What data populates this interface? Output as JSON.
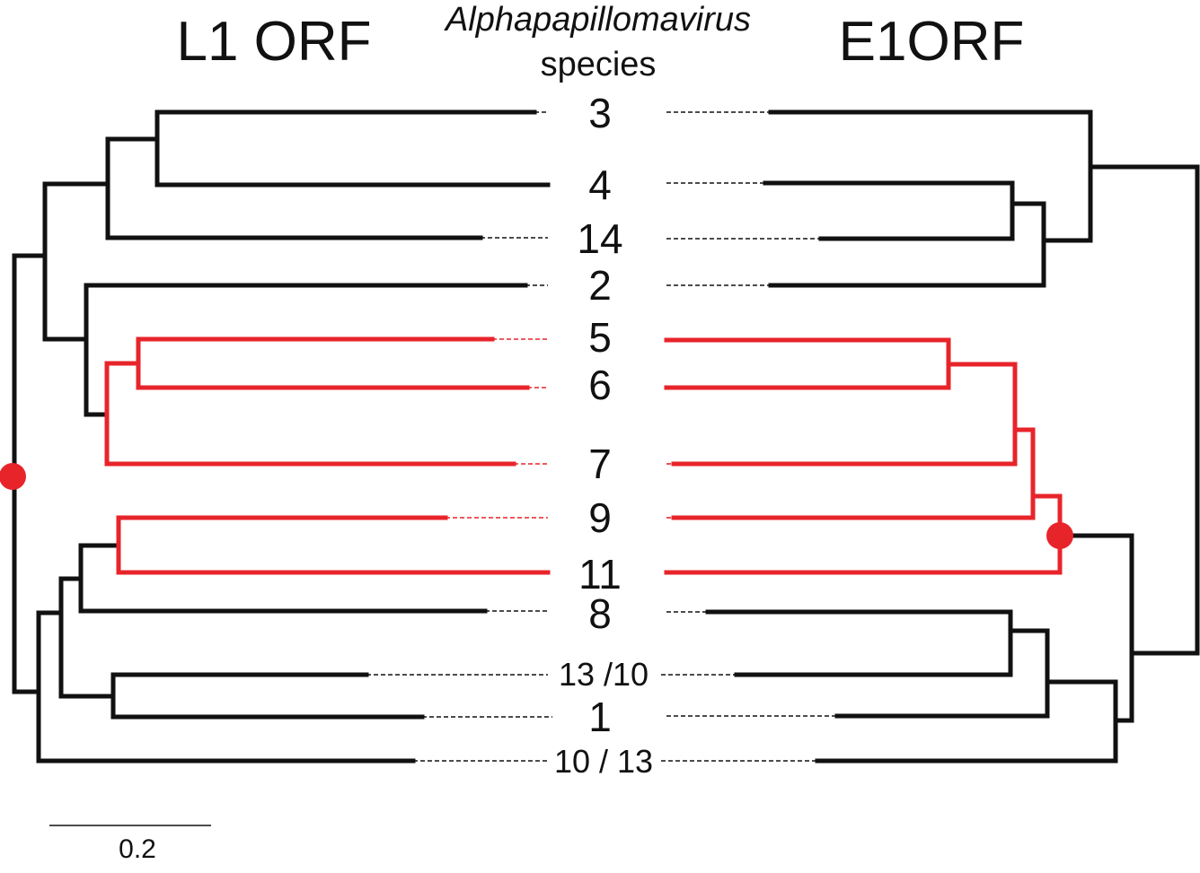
{
  "titles": {
    "left": "L1 ORF",
    "right": "E1ORF",
    "center_line1": "Alphapapillomavirus",
    "center_line2": "species"
  },
  "species_labels": [
    "3",
    "4",
    "14",
    "2",
    "5",
    "6",
    "7",
    "9",
    "11",
    "8",
    "13 /10",
    "1",
    "10 / 13"
  ],
  "scale_bar": {
    "label": "0.2"
  },
  "colors": {
    "black": "#111111",
    "highlight": "#e8242b",
    "root_marker": "#e8242b"
  },
  "clades": {
    "highlighted": [
      "5",
      "6",
      "7",
      "9",
      "11"
    ]
  }
}
